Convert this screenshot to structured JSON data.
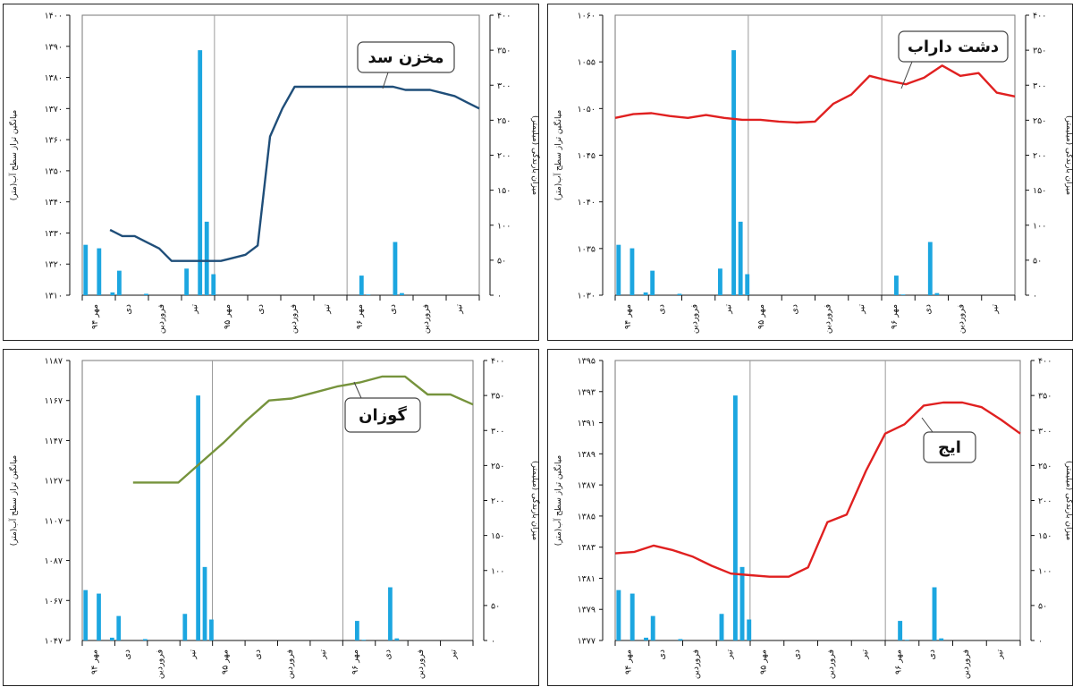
{
  "colors": {
    "bar": "#1ca6e0",
    "vline": "#9a9a9a",
    "axis": "#111111"
  },
  "chart_data": [
    {
      "type": "line",
      "title": "مخزن سد",
      "left_ylabel": "میانگین تراز سطح آب(متر)",
      "right_ylabel": "میزان بارندگی (میلیمتر)",
      "ylim_left": [
        1310,
        1400
      ],
      "ylim_right": [
        0,
        400
      ],
      "left_ticks": [
        "۱۳۱۰",
        "۱۳۲۰",
        "۱۳۳۰",
        "۱۳۴۰",
        "۱۳۵۰",
        "۱۳۶۰",
        "۱۳۷۰",
        "۱۳۸۰",
        "۱۳۹۰",
        "۱۴۰۰"
      ],
      "right_ticks": [
        "۰",
        "۵۰",
        "۱۰۰",
        "۱۵۰",
        "۲۰۰",
        "۲۵۰",
        "۳۰۰",
        "۳۵۰",
        "۴۰۰"
      ],
      "x_tick_labels": [
        "مهر ۹۴",
        "دی",
        "فروردین",
        "تیر",
        "مهر ۹۵",
        "دی",
        "فروردین",
        "تیر",
        "مهر ۹۶",
        "دی",
        "فروردین",
        "تیر"
      ],
      "line_color": "#1f4e79",
      "series": [
        {
          "values": [
            1331,
            1329,
            1329,
            1327,
            1325,
            1321,
            1321,
            1321,
            1321,
            1321,
            1322,
            1323,
            1326,
            1361,
            1370,
            1377,
            1377,
            1377,
            1377,
            1377,
            1377,
            1377,
            1377,
            1377,
            1376,
            1376,
            1376,
            1375,
            1374,
            1372,
            1370
          ]
        }
      ],
      "rainfall": [
        72,
        0,
        67,
        0,
        4,
        35,
        0,
        0,
        0,
        2,
        0,
        0,
        0,
        0,
        0,
        38,
        0,
        350,
        105,
        30,
        0,
        0,
        0,
        0,
        0,
        0,
        0,
        0,
        0,
        0,
        0,
        0,
        0,
        0,
        0,
        0,
        0,
        0,
        0,
        0,
        0,
        28,
        1,
        0,
        0,
        0,
        76,
        3,
        0,
        0,
        0,
        0,
        0,
        0,
        0,
        0,
        0,
        0,
        0
      ]
    },
    {
      "type": "line",
      "title": "دشت داراب",
      "left_ylabel": "میانگین تراز سطح آب(متر)",
      "right_ylabel": "میزان بارندگی (میلیمتر)",
      "ylim_left": [
        1030,
        1060
      ],
      "ylim_right": [
        0,
        400
      ],
      "left_ticks": [
        "۱۰۳۰",
        "۱۰۳۵",
        "۱۰۴۰",
        "۱۰۴۵",
        "۱۰۵۰",
        "۱۰۵۵",
        "۱۰۶۰"
      ],
      "right_ticks": [
        "۰",
        "۵۰",
        "۱۰۰",
        "۱۵۰",
        "۲۰۰",
        "۲۵۰",
        "۳۰۰",
        "۳۵۰",
        "۴۰۰"
      ],
      "x_tick_labels": [
        "مهر ۹۴",
        "دی",
        "فروردین",
        "تیر",
        "مهر ۹۵",
        "دی",
        "فروردین",
        "تیر",
        "مهر ۹۶",
        "دی",
        "فروردین",
        "تیر"
      ],
      "line_color": "#e02020",
      "series": [
        {
          "values": [
            1049.0,
            1049.4,
            1049.5,
            1049.2,
            1049.0,
            1049.3,
            1049.0,
            1048.8,
            1048.8,
            1048.6,
            1048.5,
            1048.6,
            1050.5,
            1051.5,
            1053.5,
            1053.0,
            1052.6,
            1053.3,
            1054.6,
            1053.5,
            1053.8,
            1051.7,
            1051.3
          ]
        }
      ],
      "rainfall": [
        72,
        0,
        67,
        0,
        4,
        35,
        0,
        0,
        0,
        2,
        0,
        0,
        0,
        0,
        0,
        38,
        0,
        350,
        105,
        30,
        0,
        0,
        0,
        0,
        0,
        0,
        0,
        0,
        0,
        0,
        0,
        0,
        0,
        0,
        0,
        0,
        0,
        0,
        0,
        0,
        0,
        28,
        1,
        0,
        0,
        0,
        76,
        3,
        0,
        0,
        0,
        0,
        0,
        0,
        0,
        0,
        0,
        0,
        0
      ]
    },
    {
      "type": "line",
      "title": "گوزان",
      "left_ylabel": "میانگین تراز سطح آب(متر)",
      "right_ylabel": "میزان بارندگی (میلیمتر)",
      "ylim_left": [
        1047,
        1187
      ],
      "ylim_right": [
        0,
        400
      ],
      "left_ticks": [
        "۱۰۴۷",
        "۱۰۶۷",
        "۱۰۸۷",
        "۱۱۰۷",
        "۱۱۲۷",
        "۱۱۴۷",
        "۱۱۶۷",
        "۱۱۸۷"
      ],
      "right_ticks": [
        "۰",
        "۵۰",
        "۱۰۰",
        "۱۵۰",
        "۲۰۰",
        "۲۵۰",
        "۳۰۰",
        "۳۵۰",
        "۴۰۰"
      ],
      "x_tick_labels": [
        "مهر ۹۴",
        "دی",
        "فروردین",
        "تیر",
        "مهر ۹۵",
        "دی",
        "فروردین",
        "تیر",
        "مهر ۹۶",
        "دی",
        "فروردین",
        "تیر"
      ],
      "line_color": "#76933c",
      "series": [
        {
          "values": [
            1126,
            1126,
            1126,
            1136,
            1146,
            1157,
            1167,
            1168,
            1171,
            1174,
            1176,
            1179,
            1179,
            1170,
            1170,
            1165
          ]
        }
      ],
      "rainfall": [
        72,
        0,
        67,
        0,
        4,
        35,
        0,
        0,
        0,
        2,
        0,
        0,
        0,
        0,
        0,
        38,
        0,
        350,
        105,
        30,
        0,
        0,
        0,
        0,
        0,
        0,
        0,
        0,
        0,
        0,
        0,
        0,
        0,
        0,
        0,
        0,
        0,
        0,
        0,
        0,
        0,
        28,
        1,
        0,
        0,
        0,
        76,
        3,
        0,
        0,
        0,
        0,
        0,
        0,
        0,
        0,
        0,
        0,
        0
      ]
    },
    {
      "type": "line",
      "title": "ایج",
      "left_ylabel": "میانگین تراز سطح آب(متر)",
      "right_ylabel": "میزان بارندگی (میلیمتر)",
      "ylim_left": [
        1377,
        1395
      ],
      "ylim_right": [
        0,
        400
      ],
      "left_ticks": [
        "۱۳۷۷",
        "۱۳۷۹",
        "۱۳۸۱",
        "۱۳۸۳",
        "۱۳۸۵",
        "۱۳۸۷",
        "۱۳۸۹",
        "۱۳۹۱",
        "۱۳۹۳",
        "۱۳۹۵"
      ],
      "right_ticks": [
        "۰",
        "۵۰",
        "۱۰۰",
        "۱۵۰",
        "۲۰۰",
        "۲۵۰",
        "۳۰۰",
        "۳۵۰",
        "۴۰۰"
      ],
      "x_tick_labels": [
        "مهر ۹۴",
        "دی",
        "فروردین",
        "تیر",
        "مهر ۹۵",
        "دی",
        "فروردین",
        "تیر",
        "مهر ۹۶",
        "دی",
        "فروردین",
        "تیر"
      ],
      "line_color": "#e02020",
      "series": [
        {
          "values": [
            1382.6,
            1382.7,
            1383.1,
            1382.8,
            1382.4,
            1381.8,
            1381.3,
            1381.2,
            1381.1,
            1381.1,
            1381.7,
            1384.6,
            1385.1,
            1387.9,
            1390.3,
            1390.9,
            1392.1,
            1392.3,
            1392.3,
            1392.0,
            1391.2,
            1390.3
          ]
        }
      ],
      "rainfall": [
        72,
        0,
        67,
        0,
        4,
        35,
        0,
        0,
        0,
        2,
        0,
        0,
        0,
        0,
        0,
        38,
        0,
        350,
        105,
        30,
        0,
        0,
        0,
        0,
        0,
        0,
        0,
        0,
        0,
        0,
        0,
        0,
        0,
        0,
        0,
        0,
        0,
        0,
        0,
        0,
        0,
        28,
        1,
        0,
        0,
        0,
        76,
        3,
        0,
        0,
        0,
        0,
        0,
        0,
        0,
        0,
        0,
        0,
        0
      ]
    }
  ]
}
